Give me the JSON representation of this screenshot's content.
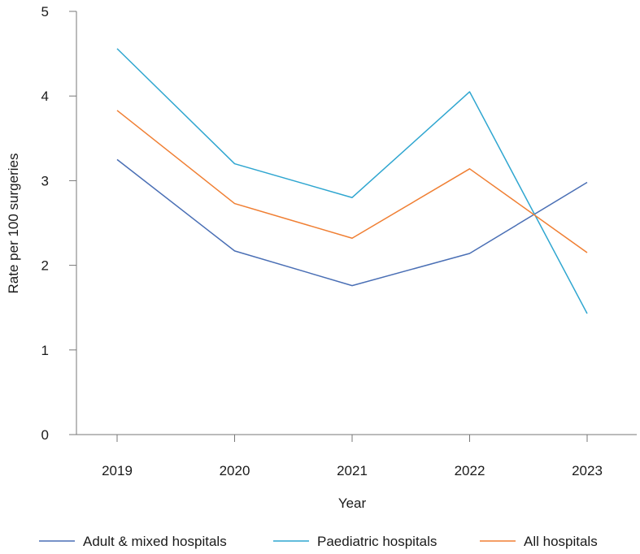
{
  "chart_data": {
    "type": "line",
    "title": "",
    "xlabel": "Year",
    "ylabel": "Rate per 100 surgeries",
    "categories": [
      "2019",
      "2020",
      "2021",
      "2022",
      "2023"
    ],
    "ylim": [
      0,
      5
    ],
    "yticks": [
      "0",
      "1",
      "2",
      "3",
      "4",
      "5"
    ],
    "grid": false,
    "legend_position": "bottom",
    "series": [
      {
        "name": "Adult & mixed hospitals",
        "color": "#4a6fb5",
        "values": [
          3.25,
          2.17,
          1.76,
          2.14,
          2.98
        ]
      },
      {
        "name": "Paediatric hospitals",
        "color": "#2fa6d0",
        "values": [
          4.56,
          3.2,
          2.8,
          4.05,
          1.43
        ]
      },
      {
        "name": "All hospitals",
        "color": "#f07f33",
        "values": [
          3.83,
          2.73,
          2.32,
          3.14,
          2.15
        ]
      }
    ]
  }
}
